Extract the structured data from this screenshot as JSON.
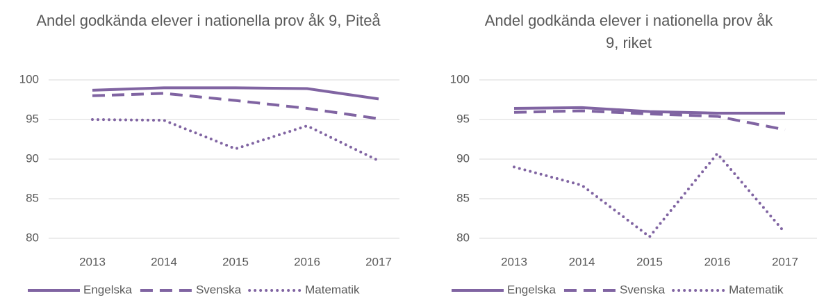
{
  "chart_data": [
    {
      "type": "line",
      "title": "Andel godkända elever i nationella prov åk 9, Piteå",
      "categories": [
        "2013",
        "2014",
        "2015",
        "2016",
        "2017"
      ],
      "series": [
        {
          "name": "Engelska",
          "color": "#8064a2",
          "style": "solid",
          "values": [
            98.7,
            99.0,
            99.0,
            98.9,
            97.6
          ]
        },
        {
          "name": "Svenska",
          "color": "#8064a2",
          "style": "dashed",
          "values": [
            98.0,
            98.3,
            97.4,
            96.4,
            95.1
          ]
        },
        {
          "name": "Matematik",
          "color": "#8064a2",
          "style": "dotted",
          "values": [
            95.0,
            94.9,
            91.3,
            94.2,
            89.8
          ]
        }
      ],
      "ylim": [
        80,
        100
      ],
      "yticks": [
        80,
        85,
        90,
        95,
        100
      ],
      "grid": true,
      "legend": "bottom"
    },
    {
      "type": "line",
      "title": "Andel godkända elever i nationella prov åk 9, riket",
      "categories": [
        "2013",
        "2014",
        "2015",
        "2016",
        "2017"
      ],
      "series": [
        {
          "name": "Engelska",
          "color": "#8064a2",
          "style": "solid",
          "values": [
            96.4,
            96.5,
            96.0,
            95.8,
            95.8
          ]
        },
        {
          "name": "Svenska",
          "color": "#8064a2",
          "style": "dashed",
          "values": [
            95.9,
            96.1,
            95.7,
            95.4,
            93.7
          ]
        },
        {
          "name": "Matematik",
          "color": "#8064a2",
          "style": "dotted",
          "values": [
            89.0,
            86.7,
            80.2,
            90.7,
            80.7
          ]
        }
      ],
      "ylim": [
        80,
        100
      ],
      "yticks": [
        80,
        85,
        90,
        95,
        100
      ],
      "grid": true,
      "legend": "bottom"
    }
  ]
}
